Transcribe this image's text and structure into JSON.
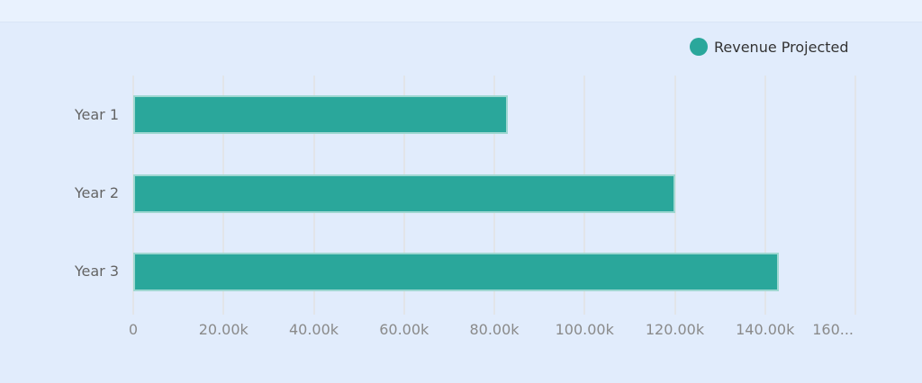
{
  "legend": {
    "position": "top-right",
    "items": [
      {
        "label": "Revenue Projected",
        "color": "#2aa79b"
      }
    ]
  },
  "chart_data": {
    "type": "bar",
    "orientation": "horizontal",
    "title": "",
    "xlabel": "",
    "ylabel": "",
    "categories": [
      "Year 1",
      "Year 2",
      "Year 3"
    ],
    "series": [
      {
        "name": "Revenue Projected",
        "values": [
          83000,
          120000,
          143000
        ],
        "color": "#2aa79b",
        "border_color": "#9fd7d1"
      }
    ],
    "xlim": [
      0,
      160000
    ],
    "x_tick_values": [
      0,
      20000,
      40000,
      60000,
      80000,
      100000,
      120000,
      140000,
      160000
    ],
    "x_tick_labels": [
      "0",
      "20.00k",
      "40.00k",
      "60.00k",
      "80.00k",
      "100.00k",
      "120.00k",
      "140.00k",
      "160..."
    ],
    "grid": true,
    "legend_position": "top-right"
  },
  "colors": {
    "background": "#e1ecfc",
    "top_strip": "#e9f2fe",
    "gridline": "#e2e5e9",
    "bar_fill": "#2aa79b",
    "bar_border": "#9fd7d1",
    "x_tick_text": "#8a8a8a",
    "category_text": "#646464",
    "legend_text": "#333333"
  }
}
